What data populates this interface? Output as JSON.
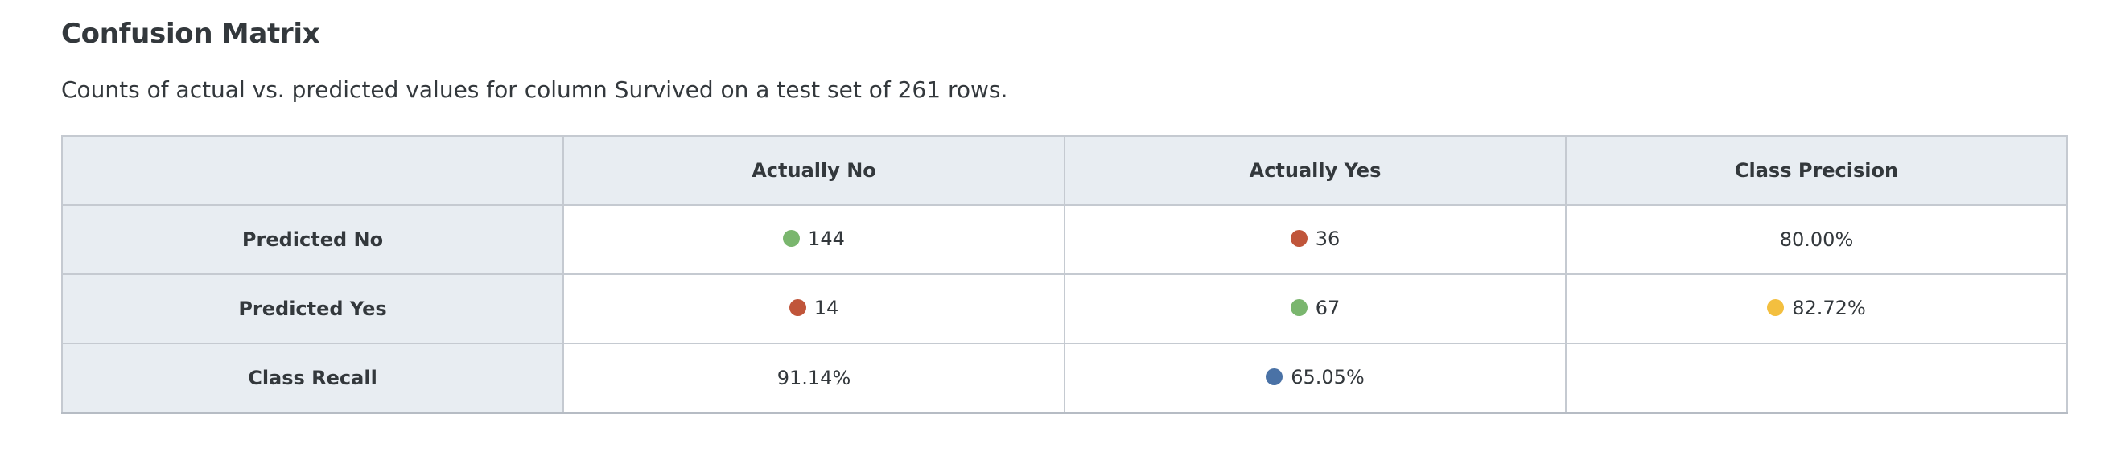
{
  "title": "Confusion Matrix",
  "subtitle": "Counts of actual vs. predicted values for column Survived on a test set of 261 rows.",
  "colors": {
    "correct": "#7ab66e",
    "incorrect": "#c0553a",
    "precision": "#f3bf3f",
    "recall": "#4a72a6"
  },
  "chart_data": {
    "type": "table",
    "title": "Confusion Matrix",
    "columns": [
      "",
      "Actually No",
      "Actually Yes",
      "Class Precision"
    ],
    "rows": [
      {
        "label": "Predicted No",
        "cells": [
          {
            "text": "144",
            "indicator": "correct"
          },
          {
            "text": "36",
            "indicator": "incorrect"
          },
          {
            "text": "80.00%",
            "indicator": null
          }
        ]
      },
      {
        "label": "Predicted Yes",
        "cells": [
          {
            "text": "14",
            "indicator": "incorrect"
          },
          {
            "text": "67",
            "indicator": "correct"
          },
          {
            "text": "82.72%",
            "indicator": "precision"
          }
        ]
      },
      {
        "label": "Class Recall",
        "cells": [
          {
            "text": "91.14%",
            "indicator": null
          },
          {
            "text": "65.05%",
            "indicator": "recall"
          },
          {
            "text": "",
            "indicator": null
          }
        ]
      }
    ]
  }
}
